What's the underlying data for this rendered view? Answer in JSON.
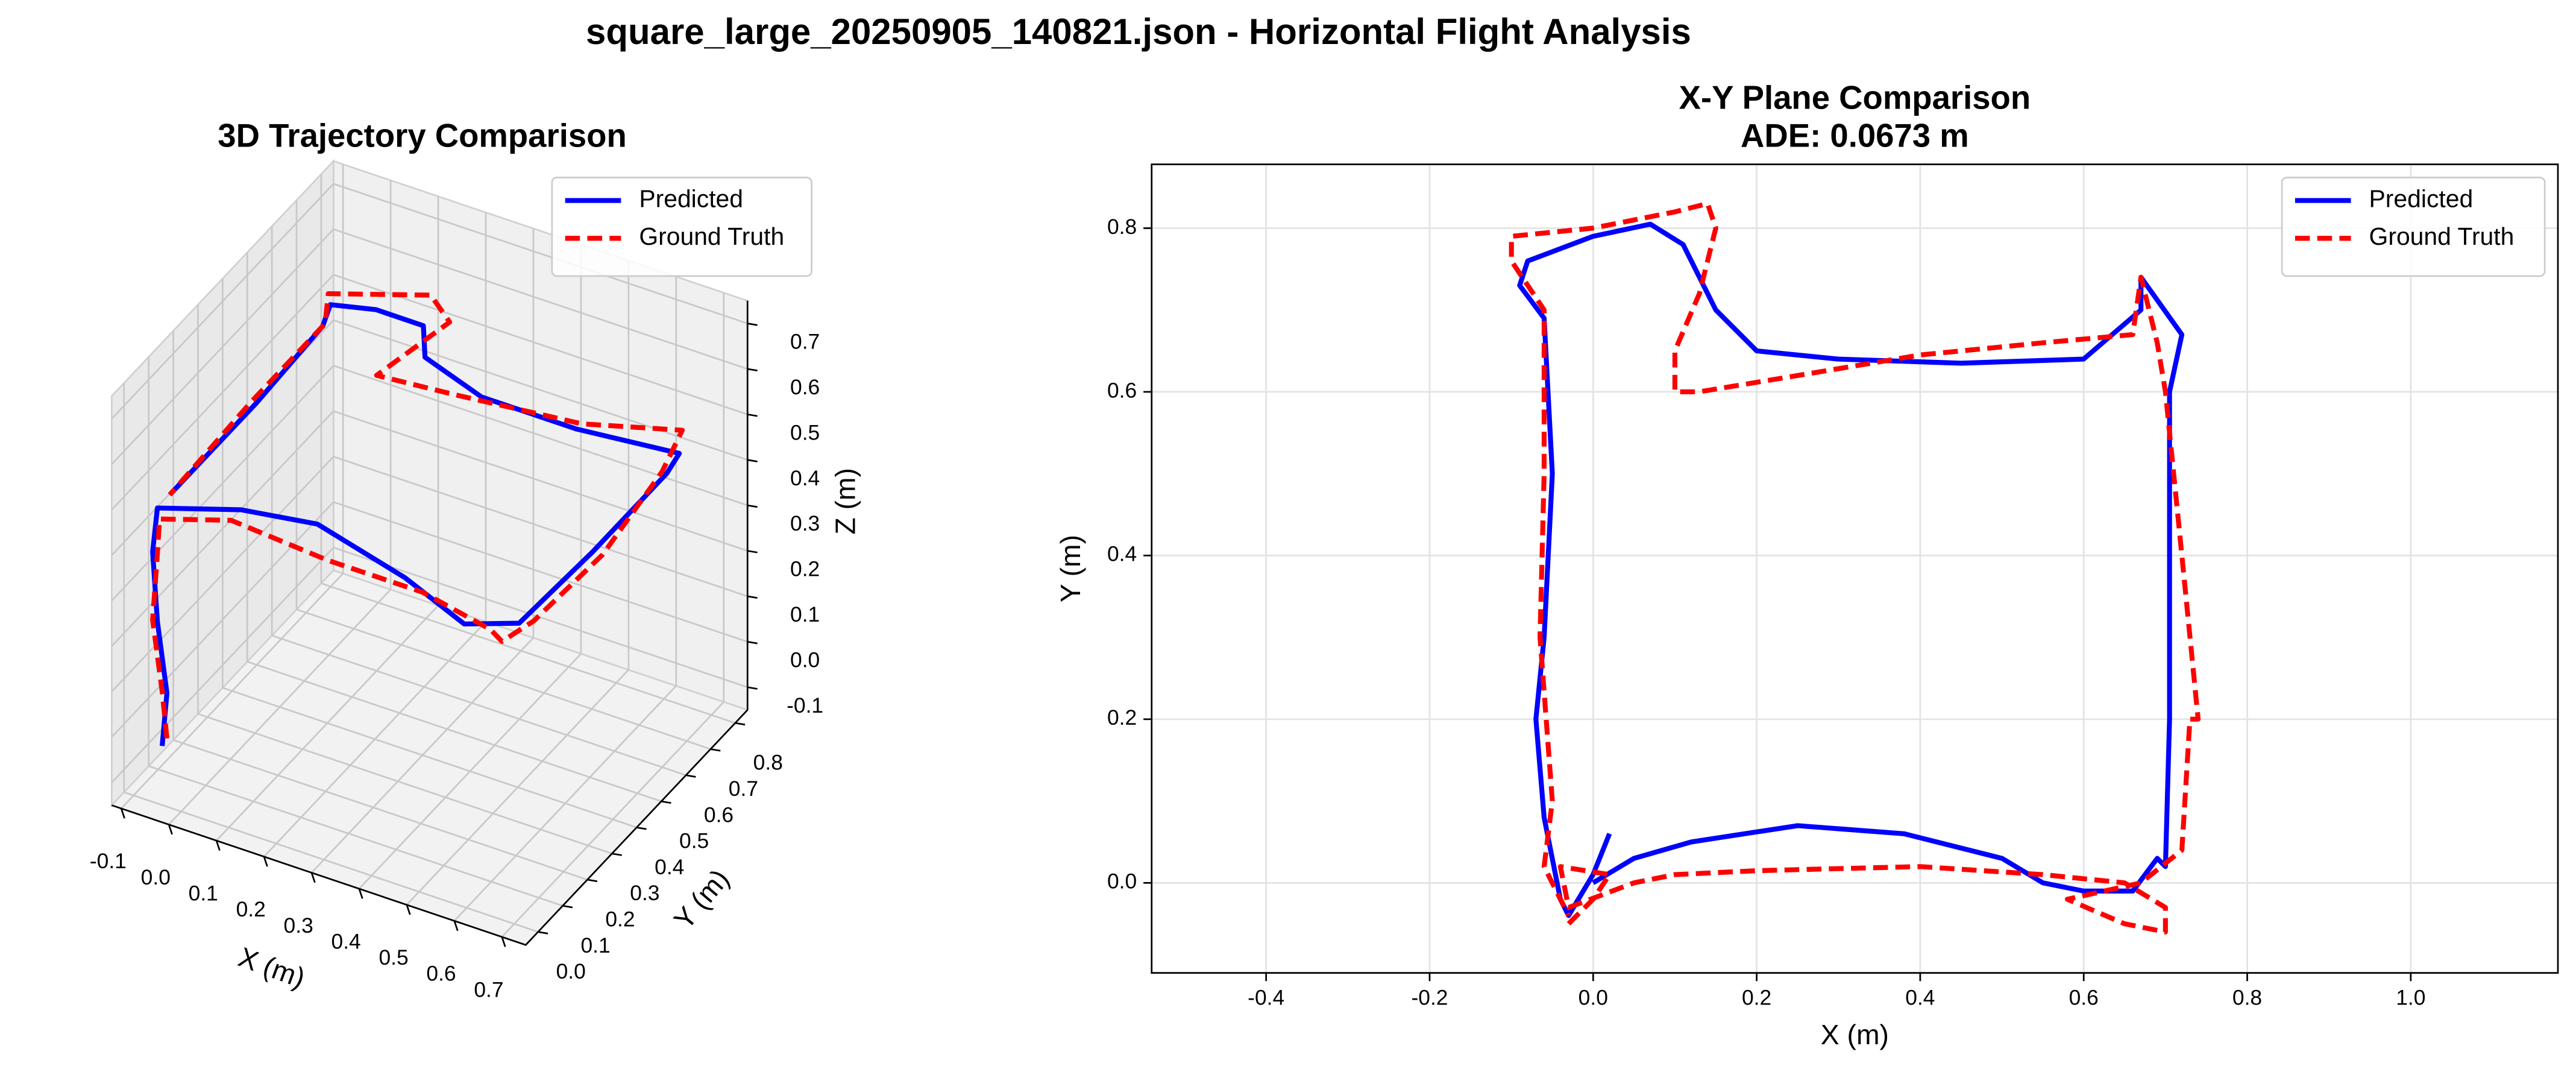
{
  "title": "square_large_20250905_140821.json - Horizontal Flight Analysis",
  "chart_data": [
    {
      "type": "line3d",
      "title": "3D Trajectory Comparison",
      "x_label": "X (m)",
      "y_label": "Y (m)",
      "z_label": "Z (m)",
      "xlim": [
        -0.12,
        0.75
      ],
      "ylim": [
        -0.05,
        0.85
      ],
      "zlim": [
        -0.15,
        0.75
      ],
      "xticks": [
        -0.1,
        {
          "value": 0,
          "label": "0.0"
        },
        0.1,
        0.2,
        0.3,
        0.4,
        0.5,
        0.6,
        0.7
      ],
      "yticks": [
        {
          "value": 0,
          "label": "0.0"
        },
        0.1,
        0.2,
        0.3,
        0.4,
        0.5,
        0.6,
        0.7,
        0.8
      ],
      "zticks": [
        -0.1,
        {
          "value": 0,
          "label": "0.0"
        },
        0.1,
        0.2,
        0.3,
        0.4,
        0.5,
        0.6,
        0.7
      ],
      "grid": true,
      "legend": "upper right",
      "series": [
        {
          "name": "Predicted",
          "color": "#0000ff",
          "style": "solid",
          "x": [
            -0.04,
            -0.03,
            -0.05,
            -0.06,
            -0.05,
            0.1,
            0.25,
            0.45,
            0.6,
            0.7,
            0.71,
            0.71,
            0.7,
            0.5,
            0.3,
            0.15,
            0.1,
            0.0,
            -0.08,
            -0.06,
            -0.05,
            -0.05
          ],
          "y": [
            0.0,
            0.0,
            0.0,
            0.0,
            0.0,
            0.05,
            0.07,
            0.04,
            -0.01,
            0.02,
            0.3,
            0.6,
            0.67,
            0.64,
            0.64,
            0.7,
            0.79,
            0.79,
            0.76,
            0.69,
            0.4,
            0.05
          ],
          "z": [
            -0.02,
            0.1,
            0.25,
            0.4,
            0.5,
            0.52,
            0.53,
            0.5,
            0.48,
            0.5,
            0.5,
            0.5,
            0.5,
            0.5,
            0.5,
            0.5,
            0.5,
            0.5,
            0.5,
            0.5,
            0.5,
            0.5
          ]
        },
        {
          "name": "Ground Truth",
          "color": "#ff0000",
          "style": "dashed",
          "x": [
            -0.03,
            -0.04,
            -0.06,
            -0.05,
            -0.03,
            0.1,
            0.3,
            0.5,
            0.65,
            0.7,
            0.72,
            0.73,
            0.7,
            0.67,
            0.5,
            0.25,
            0.1,
            0.15,
            0.1,
            -0.1,
            -0.06,
            -0.06,
            -0.05
          ],
          "y": [
            0.0,
            0.0,
            0.0,
            0.0,
            -0.03,
            0.01,
            0.015,
            0.015,
            0.0,
            -0.05,
            0.04,
            0.3,
            0.6,
            0.74,
            0.66,
            0.62,
            0.6,
            0.8,
            0.82,
            0.79,
            0.7,
            0.4,
            0.05
          ],
          "z": [
            0.0,
            0.1,
            0.25,
            0.4,
            0.5,
            0.52,
            0.5,
            0.5,
            0.48,
            0.5,
            0.5,
            0.5,
            0.5,
            0.5,
            0.5,
            0.5,
            0.5,
            0.52,
            0.55,
            0.5,
            0.5,
            0.5,
            0.5
          ]
        }
      ]
    },
    {
      "type": "line",
      "title": "X-Y Plane Comparison",
      "subtitle": "ADE: 0.0673 m",
      "x_label": "X (m)",
      "y_label": "Y (m)",
      "xlim": [
        -0.54,
        1.18
      ],
      "ylim": [
        -0.11,
        0.878
      ],
      "xticks": [
        -0.4,
        -0.2,
        {
          "value": 0,
          "label": "0.0"
        },
        0.2,
        0.4,
        0.6,
        0.8,
        {
          "value": 1,
          "label": "1.0"
        }
      ],
      "yticks": [
        {
          "value": 0,
          "label": "0.0"
        },
        0.2,
        0.4,
        0.6,
        0.8
      ],
      "grid": true,
      "legend": "upper right",
      "series": [
        {
          "name": "Predicted",
          "color": "#0000ff",
          "style": "solid",
          "x": [
            0.0,
            0.05,
            0.12,
            0.25,
            0.38,
            0.5,
            0.55,
            0.6,
            0.66,
            0.69,
            0.7,
            0.705,
            0.705,
            0.705,
            0.72,
            0.67,
            0.67,
            0.6,
            0.45,
            0.3,
            0.2,
            0.15,
            0.11,
            0.07,
            0.0,
            -0.08,
            -0.09,
            -0.06,
            -0.05,
            -0.06,
            -0.07,
            -0.06,
            -0.04,
            -0.03,
            0.0,
            0.02
          ],
          "y": [
            0.0,
            0.03,
            0.05,
            0.07,
            0.06,
            0.03,
            0.0,
            -0.01,
            -0.01,
            0.03,
            0.02,
            0.2,
            0.4,
            0.6,
            0.67,
            0.74,
            0.7,
            0.64,
            0.635,
            0.64,
            0.65,
            0.7,
            0.78,
            0.805,
            0.79,
            0.76,
            0.73,
            0.69,
            0.5,
            0.3,
            0.2,
            0.08,
            -0.02,
            -0.04,
            0.01,
            0.06
          ]
        },
        {
          "name": "Ground Truth",
          "color": "#ff0000",
          "style": "dashed",
          "x": [
            -0.03,
            0.0,
            0.02,
            -0.04,
            -0.03,
            0.05,
            0.1,
            0.2,
            0.4,
            0.55,
            0.65,
            0.7,
            0.7,
            0.65,
            0.58,
            0.67,
            0.72,
            0.73,
            0.74,
            0.72,
            0.7,
            0.69,
            0.67,
            0.66,
            0.55,
            0.4,
            0.25,
            0.13,
            0.1,
            0.1,
            0.13,
            0.15,
            0.14,
            0.1,
            0.0,
            -0.1,
            -0.1,
            -0.06,
            -0.06,
            -0.065,
            -0.05,
            -0.06,
            -0.03
          ],
          "y": [
            -0.05,
            -0.02,
            0.01,
            0.02,
            -0.03,
            0.0,
            0.01,
            0.015,
            0.02,
            0.01,
            0.0,
            -0.03,
            -0.06,
            -0.05,
            -0.02,
            0.0,
            0.04,
            0.2,
            0.2,
            0.4,
            0.6,
            0.66,
            0.74,
            0.67,
            0.66,
            0.645,
            0.62,
            0.6,
            0.6,
            0.65,
            0.72,
            0.8,
            0.83,
            0.82,
            0.8,
            0.79,
            0.76,
            0.7,
            0.5,
            0.3,
            0.1,
            0.02,
            -0.04
          ]
        }
      ]
    }
  ]
}
